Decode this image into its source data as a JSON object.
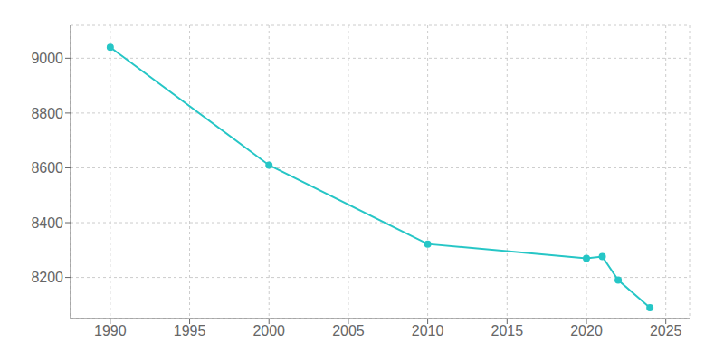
{
  "chart_data": {
    "type": "line",
    "x": [
      1990,
      2000,
      2010,
      2020,
      2021,
      2022,
      2024
    ],
    "values": [
      9040,
      8610,
      8322,
      8270,
      8276,
      8190,
      8090
    ],
    "color": "#26c6c6",
    "marker": "circle",
    "xlim": [
      1987.5,
      2026.5
    ],
    "ylim": [
      8050,
      9120
    ],
    "xticks": [
      1990,
      1995,
      2000,
      2005,
      2010,
      2015,
      2020,
      2025
    ],
    "yticks": [
      8200,
      8400,
      8600,
      8800,
      9000
    ],
    "grid": true
  }
}
